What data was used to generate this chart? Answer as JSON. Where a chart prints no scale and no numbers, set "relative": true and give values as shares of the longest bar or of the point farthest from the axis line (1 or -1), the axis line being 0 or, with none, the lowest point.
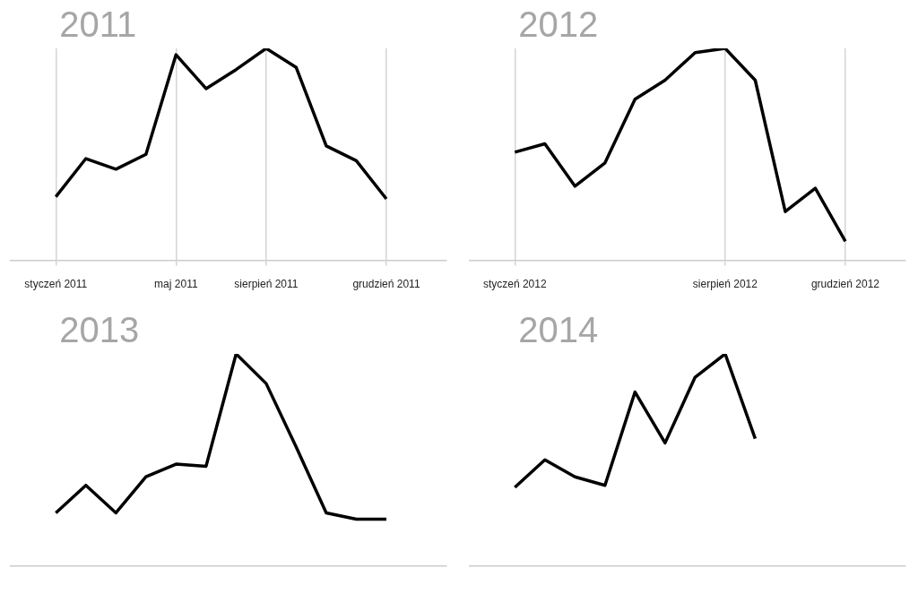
{
  "chart_data": [
    {
      "type": "line",
      "title": "2011",
      "relative": true,
      "grid": "x",
      "marker": "none",
      "categories": [
        "styczeń 2011",
        null,
        null,
        null,
        "maj 2011",
        null,
        null,
        "sierpień 2011",
        null,
        null,
        null,
        "grudzień 2011"
      ],
      "series": [
        {
          "color": "#000000",
          "values": [
            0.3,
            0.48,
            0.43,
            0.5,
            0.97,
            0.81,
            0.9,
            1,
            0.91,
            0.54,
            0.47,
            0.29
          ]
        }
      ]
    },
    {
      "type": "line",
      "title": "2012",
      "relative": true,
      "grid": "x",
      "marker": "none",
      "categories": [
        "styczeń 2012",
        null,
        null,
        null,
        null,
        null,
        null,
        "sierpień 2012",
        null,
        null,
        null,
        "grudzień 2012"
      ],
      "series": [
        {
          "color": "#000000",
          "values": [
            0.51,
            0.55,
            0.35,
            0.46,
            0.76,
            0.85,
            0.98,
            1,
            0.85,
            0.23,
            0.34,
            0.09
          ]
        }
      ]
    },
    {
      "type": "line",
      "title": "2013",
      "relative": true,
      "marker": "none",
      "categories": [
        null,
        null,
        null,
        null,
        null,
        null,
        null,
        null,
        null,
        null,
        null,
        null
      ],
      "series": [
        {
          "color": "#000000",
          "values": [
            0.25,
            0.38,
            0.25,
            0.42,
            0.48,
            0.47,
            1,
            0.86,
            0.56,
            0.25,
            0.22,
            0.22
          ]
        }
      ]
    },
    {
      "type": "line",
      "title": "2014",
      "relative": true,
      "marker": "none",
      "categories": [
        null,
        null,
        null,
        null,
        null,
        null,
        null,
        null,
        null,
        null,
        null,
        null
      ],
      "series": [
        {
          "color": "#000000",
          "values": [
            0.37,
            0.5,
            0.42,
            0.38,
            0.82,
            0.58,
            0.89,
            1,
            0.6,
            null,
            null,
            null
          ]
        }
      ]
    }
  ]
}
